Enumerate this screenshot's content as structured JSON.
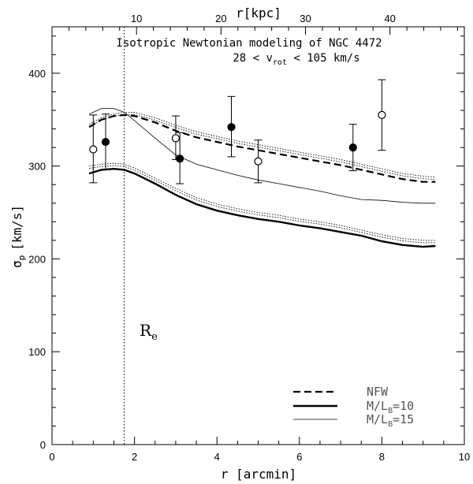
{
  "chart_data": {
    "type": "scatter",
    "title_line1": "Isotropic Newtonian modeling of NGC 4472",
    "title_line2_pre": "28 < v",
    "title_line2_sub": "rot",
    "title_line2_post": " < 105 km/s",
    "xlabel": "r [arcmin]",
    "x2label": "r[kpc]",
    "ylabel_sym": "σ",
    "ylabel_sub": "p",
    "ylabel_unit": "[km/s]",
    "xlim": [
      0,
      10
    ],
    "ylim": [
      0,
      450
    ],
    "x2lim": [
      0,
      48.8
    ],
    "xticks": [
      0,
      2,
      4,
      6,
      8,
      10
    ],
    "xtick_labels": [
      "0",
      "2",
      "4",
      "6",
      "8",
      "10"
    ],
    "yticks": [
      0,
      100,
      200,
      300,
      400
    ],
    "ytick_labels": [
      "0",
      "100",
      "200",
      "300",
      "400"
    ],
    "x2ticks": [
      10,
      20,
      30,
      40
    ],
    "x2tick_labels": [
      "10",
      "20",
      "30",
      "40"
    ],
    "effective_radius": {
      "x": 1.75,
      "label": "R",
      "label_sub": "e"
    },
    "legend": [
      {
        "name": "NFW",
        "style": "dashed"
      },
      {
        "name": "M/L",
        "sub": "B",
        "suffix": "=10",
        "style": "thick"
      },
      {
        "name": "M/L",
        "sub": "B",
        "suffix": "=15",
        "style": "thin"
      }
    ],
    "points_open": [
      {
        "x": 1.0,
        "y": 318,
        "ylo": 282,
        "yhi": 355
      },
      {
        "x": 3.0,
        "y": 330,
        "ylo": 307,
        "yhi": 354
      },
      {
        "x": 5.0,
        "y": 305,
        "ylo": 282,
        "yhi": 328
      },
      {
        "x": 8.0,
        "y": 355,
        "ylo": 317,
        "yhi": 393
      }
    ],
    "points_filled": [
      {
        "x": 1.3,
        "y": 326,
        "ylo": 296,
        "yhi": 356
      },
      {
        "x": 3.1,
        "y": 308,
        "ylo": 281,
        "yhi": 336
      },
      {
        "x": 4.35,
        "y": 342,
        "ylo": 310,
        "yhi": 375
      },
      {
        "x": 7.3,
        "y": 320,
        "ylo": 295,
        "yhi": 345
      }
    ],
    "series": [
      {
        "name": "NFW",
        "style": "dashed",
        "x": [
          0.9,
          1.2,
          1.5,
          1.75,
          2.0,
          2.5,
          3.0,
          3.5,
          4.0,
          4.5,
          5.0,
          5.5,
          6.0,
          6.5,
          7.0,
          7.5,
          8.0,
          8.5,
          9.0,
          9.3
        ],
        "y": [
          342,
          350,
          354,
          355,
          354,
          347,
          338,
          331,
          326,
          321,
          317,
          313,
          309,
          305,
          301,
          296,
          291,
          286,
          283,
          283
        ]
      },
      {
        "name": "NFW upper",
        "style": "dotted",
        "x": [
          0.9,
          1.2,
          1.5,
          1.75,
          2.0,
          2.5,
          3.0,
          3.5,
          4.0,
          4.5,
          5.0,
          5.5,
          6.0,
          6.5,
          7.0,
          7.5,
          8.0,
          8.5,
          9.0,
          9.3
        ],
        "y": [
          345,
          352,
          356,
          358,
          358,
          352,
          344,
          337,
          332,
          327,
          323,
          319,
          315,
          311,
          307,
          302,
          297,
          292,
          289,
          288
        ]
      },
      {
        "name": "M/L_B=10",
        "style": "thick",
        "x": [
          0.9,
          1.2,
          1.5,
          1.75,
          2.0,
          2.5,
          3.0,
          3.5,
          4.0,
          4.5,
          5.0,
          5.5,
          6.0,
          6.5,
          7.0,
          7.5,
          8.0,
          8.5,
          9.0,
          9.3
        ],
        "y": [
          292,
          296,
          297,
          296,
          292,
          281,
          269,
          259,
          252,
          247,
          243,
          240,
          236,
          233,
          229,
          225,
          219,
          215,
          213,
          214
        ]
      },
      {
        "name": "M/L_B=10 upper",
        "style": "dotted",
        "x": [
          0.9,
          1.2,
          1.5,
          1.75,
          2.0,
          2.5,
          3.0,
          3.5,
          4.0,
          4.5,
          5.0,
          5.5,
          6.0,
          6.5,
          7.0,
          7.5,
          8.0,
          8.5,
          9.0,
          9.3
        ],
        "y": [
          300,
          302,
          303,
          302,
          298,
          287,
          276,
          266,
          259,
          254,
          250,
          247,
          243,
          240,
          236,
          231,
          226,
          222,
          220,
          220
        ]
      },
      {
        "name": "M/L_B=15",
        "style": "thin",
        "x": [
          0.9,
          1.2,
          1.5,
          1.75,
          2.0,
          2.5,
          3.0,
          3.5,
          4.0,
          4.5,
          5.0,
          5.5,
          6.0,
          6.5,
          7.0,
          7.5,
          8.0,
          8.5,
          9.0,
          9.3
        ],
        "y": [
          356,
          362,
          362,
          358,
          349,
          330,
          312,
          302,
          296,
          290,
          285,
          281,
          277,
          273,
          268,
          264,
          263,
          261,
          260,
          260
        ]
      }
    ]
  }
}
